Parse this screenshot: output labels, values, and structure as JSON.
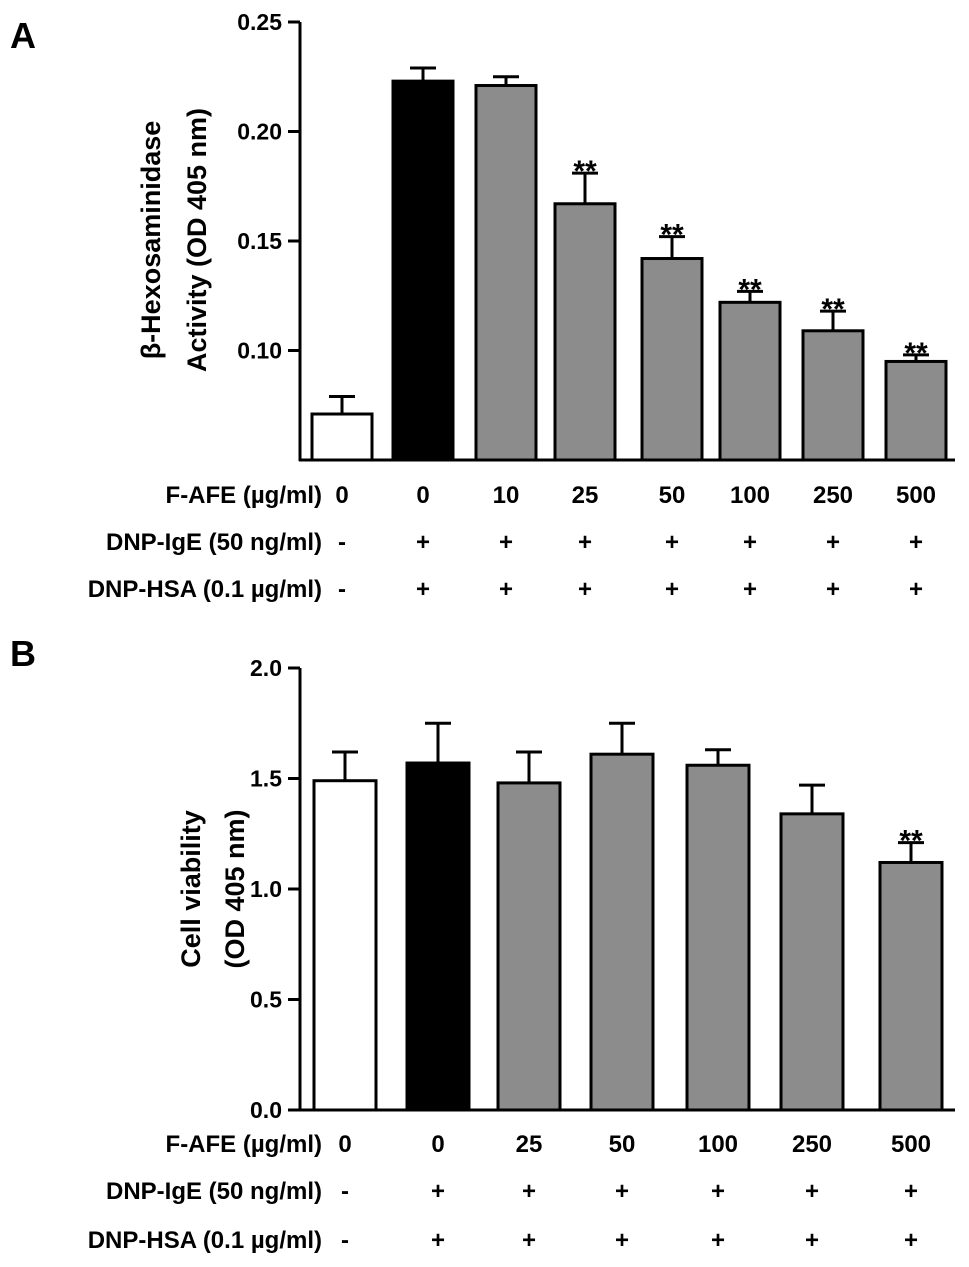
{
  "chart_data": [
    {
      "panel": "A",
      "type": "bar",
      "ylabel_lines": [
        "β-Hexosaminidase",
        "Activity (OD 405 nm)"
      ],
      "ylim": [
        0.05,
        0.25
      ],
      "yticks": [
        "0.10",
        "0.15",
        "0.20",
        "0.25"
      ],
      "ytick_values": [
        0.1,
        0.15,
        0.2,
        0.25
      ],
      "values": [
        0.071,
        0.223,
        0.221,
        0.167,
        0.142,
        0.122,
        0.109,
        0.095
      ],
      "errors": [
        0.008,
        0.006,
        0.004,
        0.014,
        0.01,
        0.005,
        0.009,
        0.003
      ],
      "colors": [
        "#ffffff",
        "#000000",
        "#8c8c8c",
        "#8c8c8c",
        "#8c8c8c",
        "#8c8c8c",
        "#8c8c8c",
        "#8c8c8c"
      ],
      "annotations": [
        "",
        "",
        "",
        "**",
        "**",
        "**",
        "**",
        "**"
      ],
      "conditions": [
        {
          "label": "F-AFE (µg/ml)",
          "values": [
            "0",
            "0",
            "10",
            "25",
            "50",
            "100",
            "250",
            "500"
          ]
        },
        {
          "label": "DNP-IgE (50 ng/ml)",
          "values": [
            "-",
            "+",
            "+",
            "+",
            "+",
            "+",
            "+",
            "+"
          ]
        },
        {
          "label": "DNP-HSA (0.1 µg/ml)",
          "values": [
            "-",
            "+",
            "+",
            "+",
            "+",
            "+",
            "+",
            "+"
          ]
        }
      ]
    },
    {
      "panel": "B",
      "type": "bar",
      "ylabel_lines": [
        "Cell viability",
        "(OD 405 nm)"
      ],
      "ylim": [
        0.0,
        2.0
      ],
      "yticks": [
        "0.0",
        "0.5",
        "1.0",
        "1.5",
        "2.0"
      ],
      "ytick_values": [
        0.0,
        0.5,
        1.0,
        1.5,
        2.0
      ],
      "values": [
        1.49,
        1.57,
        1.48,
        1.61,
        1.56,
        1.34,
        1.12
      ],
      "errors": [
        0.13,
        0.18,
        0.14,
        0.14,
        0.07,
        0.13,
        0.09
      ],
      "colors": [
        "#ffffff",
        "#000000",
        "#8c8c8c",
        "#8c8c8c",
        "#8c8c8c",
        "#8c8c8c",
        "#8c8c8c"
      ],
      "annotations": [
        "",
        "",
        "",
        "",
        "",
        "",
        "**"
      ],
      "conditions": [
        {
          "label": "F-AFE (µg/ml)",
          "values": [
            "0",
            "0",
            "25",
            "50",
            "100",
            "250",
            "500"
          ]
        },
        {
          "label": "DNP-IgE (50 ng/ml)",
          "values": [
            "-",
            "+",
            "+",
            "+",
            "+",
            "+",
            "+"
          ]
        },
        {
          "label": "DNP-HSA (0.1 µg/ml)",
          "values": [
            "-",
            "+",
            "+",
            "+",
            "+",
            "+",
            "+"
          ]
        }
      ]
    }
  ]
}
